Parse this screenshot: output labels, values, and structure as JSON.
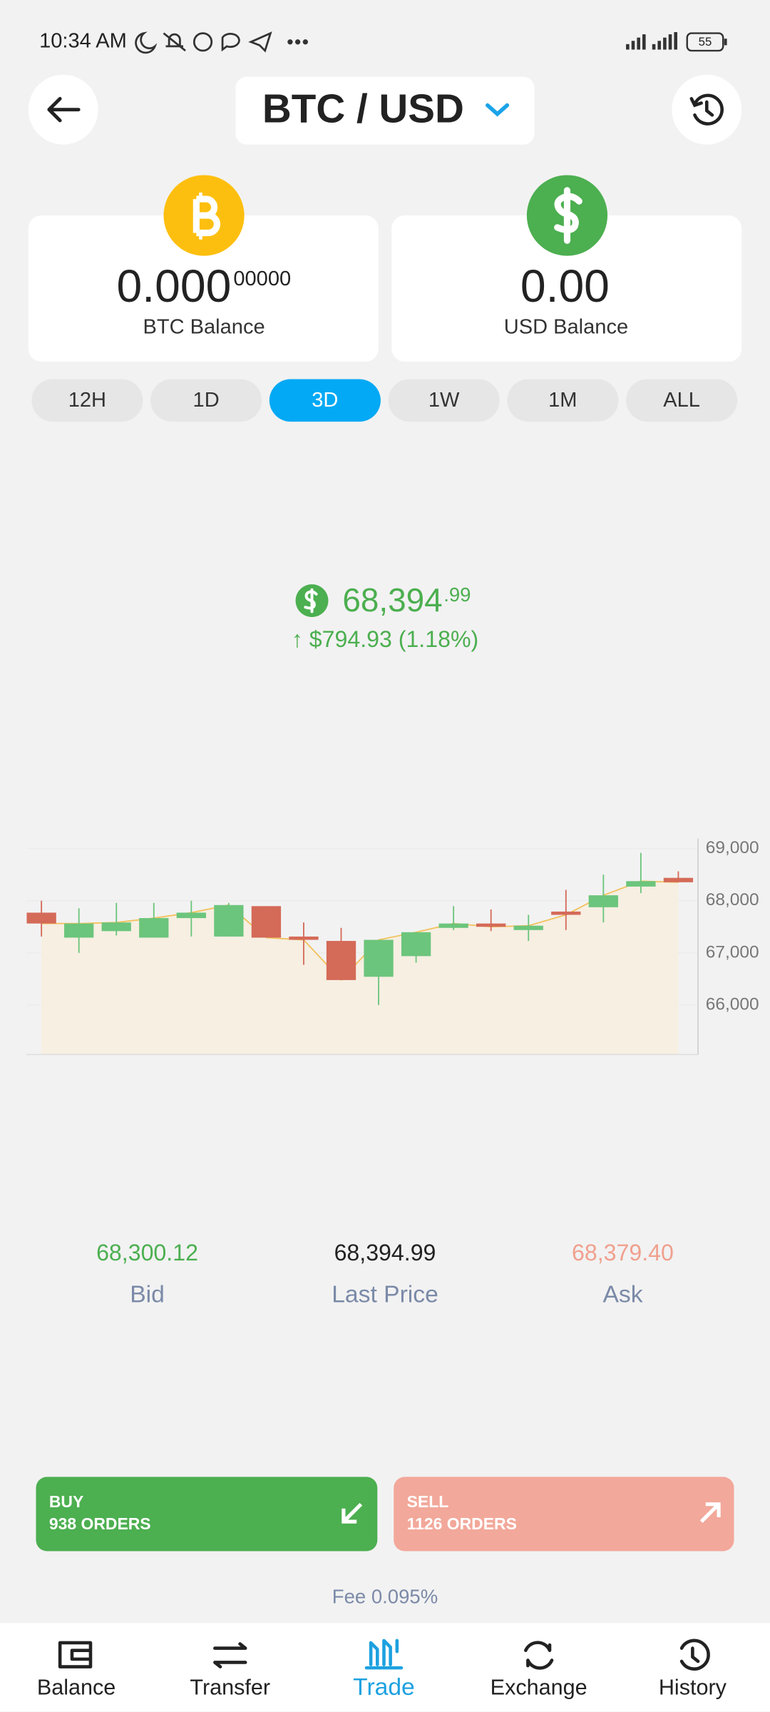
{
  "status": {
    "time": "10:34 AM",
    "battery": "55"
  },
  "header": {
    "pair": "BTC / USD"
  },
  "balances": [
    {
      "amount": "0.000",
      "fraction": "00000",
      "label": "BTC Balance"
    },
    {
      "amount": "0.00",
      "label": "USD Balance"
    }
  ],
  "ranges": {
    "items": [
      "12H",
      "1D",
      "3D",
      "1W",
      "1M",
      "ALL"
    ],
    "active": 2
  },
  "price": {
    "integer": "68,394",
    "decimals": ".99",
    "change": "↑ $794.93 (1.18%)"
  },
  "chart_data": {
    "type": "candlestick",
    "open": [
      67771,
      67292,
      67417,
      67292,
      67667,
      67313,
      67896,
      67313,
      67229,
      66542,
      66938,
      67479,
      67563,
      67438,
      67792,
      67875,
      68271,
      68438
    ],
    "close": [
      67563,
      67563,
      67583,
      67667,
      67771,
      67917,
      67292,
      67250,
      66479,
      67250,
      67396,
      67563,
      67500,
      67521,
      67729,
      68104,
      68375,
      68354
    ],
    "high": [
      68000,
      67854,
      67958,
      67958,
      68000,
      67958,
      67896,
      67583,
      67479,
      67250,
      67396,
      67896,
      67833,
      67729,
      68208,
      68500,
      68917,
      68563
    ],
    "low": [
      67313,
      67000,
      67333,
      67292,
      67313,
      67313,
      67292,
      66771,
      66479,
      66000,
      66813,
      67438,
      67417,
      67229,
      67438,
      67583,
      68146,
      68354
    ],
    "up_color": "#6cc57c",
    "down_color": "#d46a58",
    "line_color": "#f2c25e",
    "area_color": "#f6efe2",
    "ylim": [
      65050,
      69150
    ],
    "yticks": [
      {
        "value": 69000,
        "label": "69,000"
      },
      {
        "value": 68000,
        "label": "68,000"
      },
      {
        "value": 67000,
        "label": "67,000"
      },
      {
        "value": 66000,
        "label": "66,000"
      }
    ],
    "grid": true
  },
  "quotes": [
    {
      "value": "68,300.12",
      "label": "Bid",
      "color": "#4caf50"
    },
    {
      "value": "68,394.99",
      "label": "Last Price",
      "color": "#222222"
    },
    {
      "value": "68,379.40",
      "label": "Ask",
      "color": "#f0a08e"
    }
  ],
  "orders": {
    "buy": {
      "label": "BUY",
      "count": "938 ORDERS"
    },
    "sell": {
      "label": "SELL",
      "count": "1126 ORDERS"
    }
  },
  "fee": "Fee 0.095%",
  "nav": {
    "items": [
      "Balance",
      "Transfer",
      "Trade",
      "Exchange",
      "History"
    ],
    "active": 2
  }
}
